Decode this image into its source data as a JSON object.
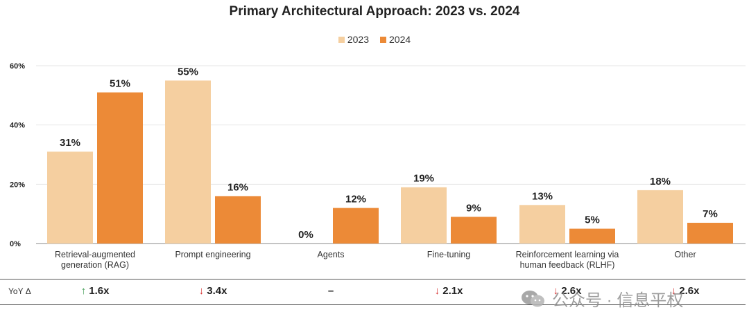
{
  "chart_data": {
    "type": "bar",
    "title": "Primary Architectural Approach: 2023 vs. 2024",
    "categories": [
      [
        "Retrieval-augmented",
        "generation (RAG)"
      ],
      [
        "Prompt engineering"
      ],
      [
        "Agents"
      ],
      [
        "Fine-tuning"
      ],
      [
        "Reinforcement learning via",
        "human feedback (RLHF)"
      ],
      [
        "Other"
      ]
    ],
    "series": [
      {
        "name": "2023",
        "color": "#f5cfa0",
        "values": [
          31,
          55,
          0,
          19,
          13,
          18
        ],
        "labels": [
          "31%",
          "55%",
          "0%",
          "19%",
          "13%",
          "18%"
        ]
      },
      {
        "name": "2024",
        "color": "#ec8a37",
        "values": [
          51,
          16,
          12,
          9,
          5,
          7
        ],
        "labels": [
          "51%",
          "16%",
          "12%",
          "9%",
          "5%",
          "7%"
        ]
      }
    ],
    "ylim": [
      0,
      60
    ],
    "yticks": [
      0,
      20,
      40,
      60
    ],
    "ytick_labels": [
      "0%",
      "20%",
      "40%",
      "60%"
    ],
    "legend_position": "top-center"
  },
  "yoy": {
    "label": "YoY Δ",
    "items": [
      {
        "direction": "up",
        "arrow": "🡑",
        "value": "1.6x"
      },
      {
        "direction": "down",
        "arrow": "🡓",
        "value": "3.4x"
      },
      {
        "direction": "none",
        "arrow": "",
        "value": "–"
      },
      {
        "direction": "down",
        "arrow": "🡓",
        "value": "2.1x"
      },
      {
        "direction": "down",
        "arrow": "🡓",
        "value": "2.6x"
      },
      {
        "direction": "down",
        "arrow": "🡓",
        "value": "2.6x"
      }
    ]
  },
  "watermark": {
    "text": "公众号 · 信息平权",
    "icon": "wechat-icon"
  }
}
